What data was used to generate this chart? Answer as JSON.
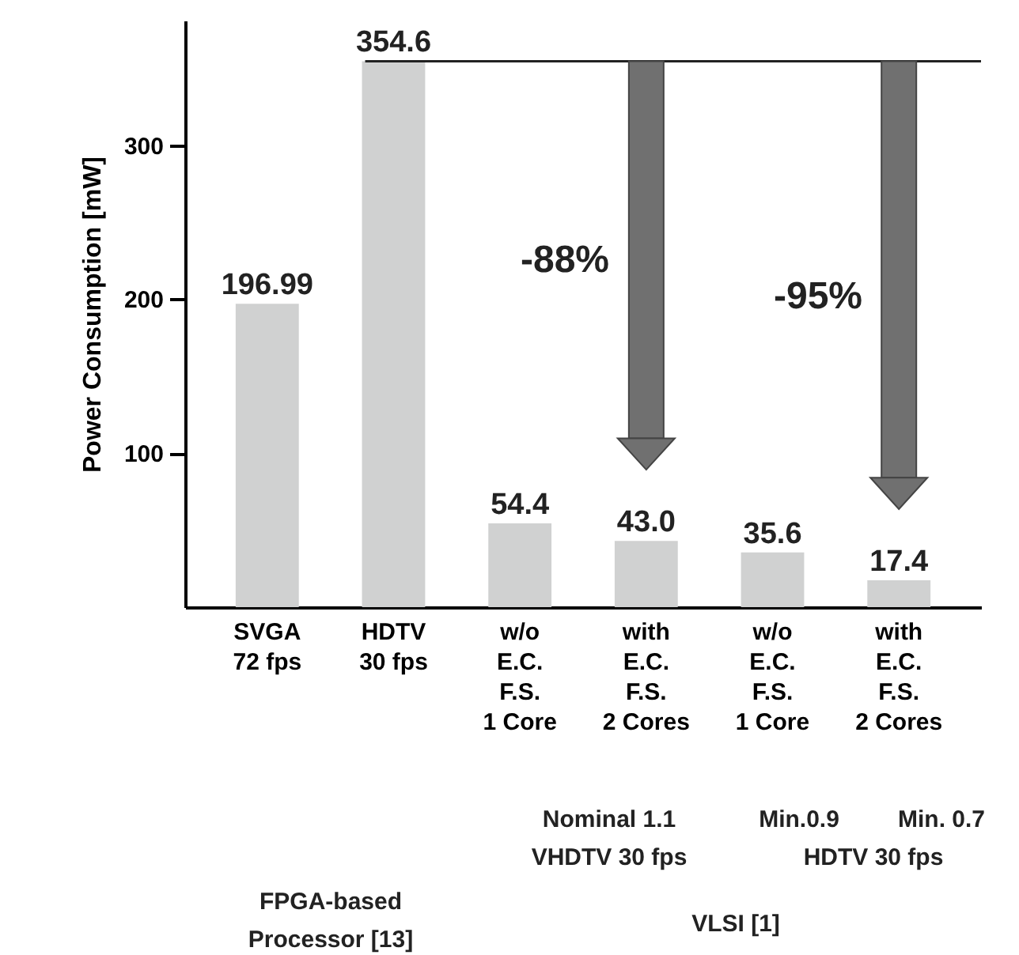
{
  "chart_data": {
    "type": "bar",
    "ylabel": "Power Consumption [mW]",
    "categories": [
      "SVGA\n72 fps",
      "HDTV\n30 fps",
      "w/o\nE.C.\nF.S.\n1 Core",
      "with\nE.C.\nF.S.\n2 Cores",
      "w/o\nE.C.\nF.S.\n1 Core",
      "with\nE.C.\nF.S.\n2 Cores"
    ],
    "values": [
      196.99,
      354.6,
      54.4,
      43.0,
      35.6,
      17.4
    ],
    "value_labels": [
      "196.99",
      "354.6",
      "54.4",
      "43.0",
      "35.6",
      "17.4"
    ],
    "color": "#d0d1d1",
    "ylim": [
      0,
      381
    ],
    "yticks": [
      100,
      200,
      300
    ],
    "grid": false,
    "ref_lines": [
      {
        "axis": "y",
        "value": 354.6,
        "color": "#222222"
      }
    ],
    "annotations": [
      "-88%",
      "-95%",
      "Nominal 1.1\nVHDTV 30 fps",
      "Min.0.9",
      "Min. 0.7",
      "HDTV 30 fps",
      "FPGA-based\nProcessor [13]",
      "VLSI [1]"
    ]
  }
}
